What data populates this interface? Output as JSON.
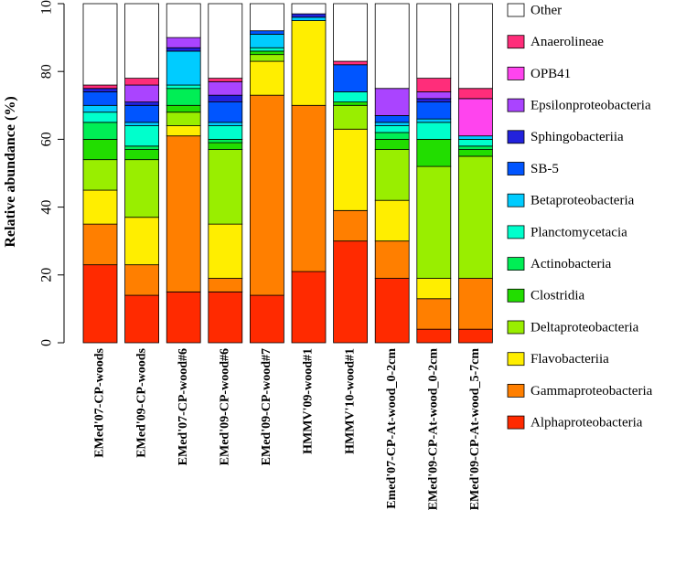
{
  "chart_data": {
    "type": "bar",
    "stacked": true,
    "ylabel": "Relative abundance (%)",
    "ylim": [
      0,
      100
    ],
    "yticks": [
      0,
      20,
      40,
      60,
      80,
      100
    ],
    "legend_position": "right",
    "categories": [
      "EMed'07-CP-woods",
      "EMed'09-CP-woods",
      "EMed'07-CP-wood#6",
      "EMed'09-CP-wood#6",
      "EMed'09-CP-wood#7",
      "HMMV'09-wood#1",
      "HMMV'10-wood#1",
      "Emed'07-CP-At-wood_0-2cm",
      "EMed'09-CP-At-wood_0-2cm",
      "EMed'09-CP-At-wood_5-7cm"
    ],
    "series": [
      {
        "name": "Alphaproteobacteria",
        "color": "#ff2a00",
        "values": [
          23,
          14,
          15,
          15,
          14,
          21,
          30,
          19,
          4,
          4
        ]
      },
      {
        "name": "Gammaproteobacteria",
        "color": "#ff7f00",
        "values": [
          12,
          9,
          46,
          4,
          59,
          49,
          9,
          11,
          9,
          15
        ]
      },
      {
        "name": "Flavobacteriia",
        "color": "#ffee00",
        "values": [
          10,
          14,
          3,
          16,
          10,
          25,
          24,
          12,
          6,
          0
        ]
      },
      {
        "name": "Deltaproteobacteria",
        "color": "#99ee00",
        "values": [
          9,
          17,
          4,
          22,
          2,
          0,
          7,
          15,
          33,
          36
        ]
      },
      {
        "name": "Clostridia",
        "color": "#22dd00",
        "values": [
          6,
          3,
          2,
          2,
          1,
          0,
          1,
          3,
          8,
          2
        ]
      },
      {
        "name": "Actinobacteria",
        "color": "#00ee55",
        "values": [
          5,
          1,
          5,
          1,
          0,
          0,
          0,
          2,
          0,
          1
        ]
      },
      {
        "name": "Planctomycetacia",
        "color": "#00ffcc",
        "values": [
          3,
          6,
          1,
          4,
          1,
          0,
          3,
          2,
          5,
          2
        ]
      },
      {
        "name": "Betaproteobacteria",
        "color": "#00ccff",
        "values": [
          2,
          1,
          10,
          1,
          4,
          1,
          0,
          1,
          1,
          1
        ]
      },
      {
        "name": "SB-5",
        "color": "#0055ff",
        "values": [
          4,
          5,
          0,
          6,
          1,
          0,
          8,
          2,
          5,
          0
        ]
      },
      {
        "name": "Sphingobacteriia",
        "color": "#2222dd",
        "values": [
          1,
          1,
          1,
          2,
          0,
          1,
          0,
          0,
          1,
          0
        ]
      },
      {
        "name": "Epsilonproteobacteria",
        "color": "#aa44ff",
        "values": [
          0,
          5,
          3,
          4,
          0,
          0,
          0,
          8,
          2,
          0
        ]
      },
      {
        "name": "OPB41",
        "color": "#ff44ee",
        "values": [
          0,
          0,
          0,
          0,
          0,
          0,
          0,
          0,
          0,
          11
        ]
      },
      {
        "name": "Anaerolineae",
        "color": "#ff2d7a",
        "values": [
          1,
          2,
          0,
          1,
          0,
          0,
          1,
          0,
          4,
          3
        ]
      },
      {
        "name": "Other",
        "color": "#ffffff",
        "values": [
          24,
          22,
          10,
          22,
          8,
          3,
          17,
          25,
          22,
          25
        ]
      }
    ]
  }
}
